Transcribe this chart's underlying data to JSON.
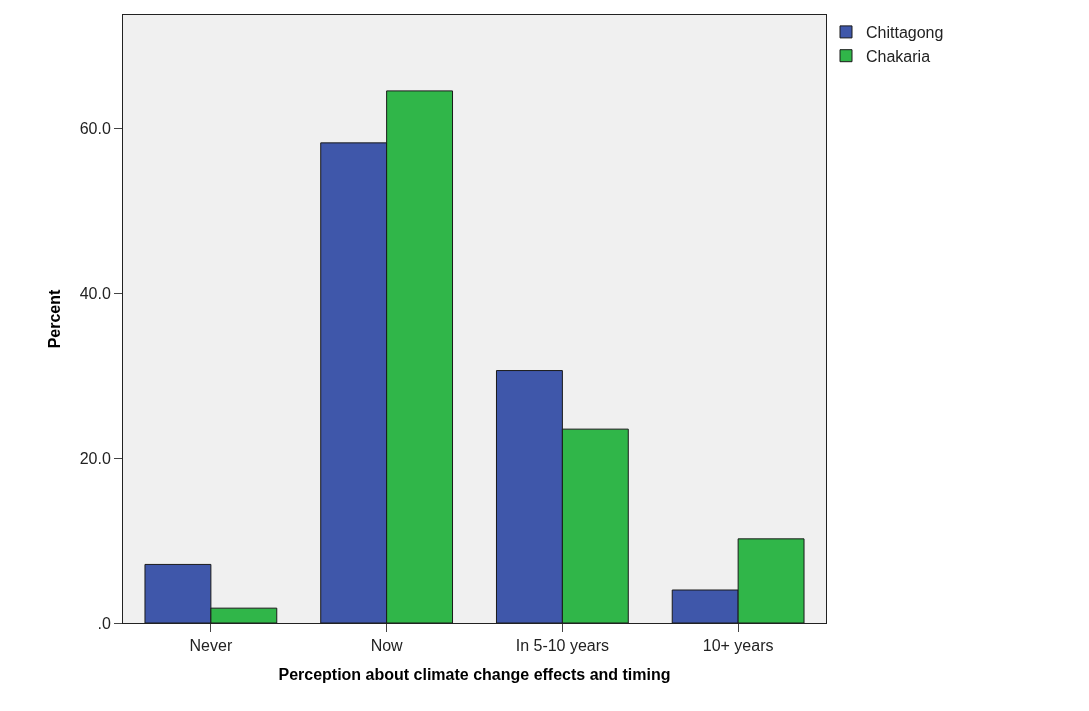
{
  "chart_data": {
    "type": "bar",
    "xlabel": "Perception about climate change effects and timing",
    "ylabel": "Percent",
    "categories": [
      "Never",
      "Now",
      "In 5-10 years",
      "10+ years"
    ],
    "series": [
      {
        "name": "Chittagong",
        "color": "#3f57aa",
        "values": [
          7.1,
          58.2,
          30.6,
          4.0
        ]
      },
      {
        "name": "Chakaria",
        "color": "#30b649",
        "values": [
          1.8,
          64.5,
          23.5,
          10.2
        ]
      }
    ],
    "ylim": [
      0,
      73.7
    ],
    "yticks": [
      {
        "value": 0,
        "label": ".0"
      },
      {
        "value": 20,
        "label": "20.0"
      },
      {
        "value": 40,
        "label": "40.0"
      },
      {
        "value": 60,
        "label": "60.0"
      }
    ],
    "grid": false,
    "legend": "top right"
  }
}
